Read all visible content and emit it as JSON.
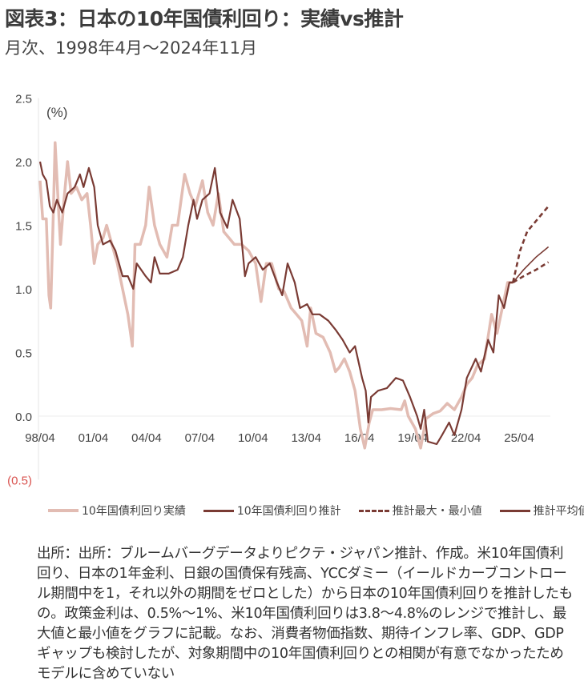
{
  "title": "図表3：日本の10年国債利回り：実績vs推計",
  "subtitle": "月次、1998年4月～2024年11月",
  "footnote": "出所：出所：ブルームバーグデータよりピクテ・ジャパン推計、作成。米10年国債利回り、日本の1年金利、日銀の国債保有残高、YCCダミー（イールドカーブコントロール期間中を1，それ以外の期間をゼロとした）から日本の10年国債利回りを推計したもの。政策金利は、0.5%～1%、米10年国債利回りは3.8～4.8%のレンジで推計し、最大値と最小値をグラフに記載。なお、消費者物価指数、期待インフレ率、GDP、GDPギャップも検討したが、対象期間中の10年国債利回りとの相関が有意でなかったためモデルに含めていない",
  "colors": {
    "actual": "#e2bcb3",
    "estimate": "#7a3b34",
    "negative_label": "#d9534f"
  },
  "chart_data": {
    "type": "line",
    "unit_label": "(%)",
    "ylim": [
      -0.5,
      2.5
    ],
    "xlim": [
      1998.25,
      2027.0
    ],
    "y_ticks": [
      {
        "value": 2.5,
        "label": "2.5"
      },
      {
        "value": 2.0,
        "label": "2.0"
      },
      {
        "value": 1.5,
        "label": "1.5"
      },
      {
        "value": 1.0,
        "label": "1.0"
      },
      {
        "value": 0.5,
        "label": "0.5"
      },
      {
        "value": 0.0,
        "label": "0.0"
      },
      {
        "value": -0.5,
        "label": "(0.5)"
      }
    ],
    "x_ticks": [
      {
        "value": 1998.25,
        "label": "98/04"
      },
      {
        "value": 2001.25,
        "label": "01/04"
      },
      {
        "value": 2004.25,
        "label": "04/04"
      },
      {
        "value": 2007.25,
        "label": "07/04"
      },
      {
        "value": 2010.25,
        "label": "10/04"
      },
      {
        "value": 2013.25,
        "label": "13/04"
      },
      {
        "value": 2016.25,
        "label": "16/04"
      },
      {
        "value": 2019.25,
        "label": "19/04"
      },
      {
        "value": 2022.25,
        "label": "22/04"
      },
      {
        "value": 2025.25,
        "label": "25/04"
      }
    ],
    "grid": false,
    "legend_position": "bottom",
    "series": [
      {
        "name": "10年国債利回り実績",
        "style": "solid-light",
        "points": [
          [
            1998.25,
            1.85
          ],
          [
            1998.4,
            1.55
          ],
          [
            1998.6,
            1.55
          ],
          [
            1998.75,
            0.95
          ],
          [
            1998.85,
            0.85
          ],
          [
            1999.0,
            1.6
          ],
          [
            1999.1,
            2.15
          ],
          [
            1999.3,
            1.6
          ],
          [
            1999.4,
            1.35
          ],
          [
            1999.6,
            1.7
          ],
          [
            1999.8,
            2.0
          ],
          [
            2000.0,
            1.75
          ],
          [
            2000.3,
            1.8
          ],
          [
            2000.6,
            1.7
          ],
          [
            2000.9,
            1.75
          ],
          [
            2001.1,
            1.5
          ],
          [
            2001.3,
            1.2
          ],
          [
            2001.5,
            1.35
          ],
          [
            2001.8,
            1.4
          ],
          [
            2002.0,
            1.5
          ],
          [
            2002.3,
            1.35
          ],
          [
            2002.6,
            1.2
          ],
          [
            2002.9,
            1.0
          ],
          [
            2003.2,
            0.8
          ],
          [
            2003.45,
            0.55
          ],
          [
            2003.6,
            1.35
          ],
          [
            2003.9,
            1.35
          ],
          [
            2004.2,
            1.5
          ],
          [
            2004.4,
            1.8
          ],
          [
            2004.7,
            1.5
          ],
          [
            2005.0,
            1.35
          ],
          [
            2005.4,
            1.25
          ],
          [
            2005.7,
            1.5
          ],
          [
            2006.0,
            1.5
          ],
          [
            2006.4,
            1.9
          ],
          [
            2006.7,
            1.75
          ],
          [
            2007.0,
            1.65
          ],
          [
            2007.4,
            1.85
          ],
          [
            2007.7,
            1.6
          ],
          [
            2008.0,
            1.5
          ],
          [
            2008.3,
            1.75
          ],
          [
            2008.6,
            1.45
          ],
          [
            2008.9,
            1.4
          ],
          [
            2009.2,
            1.35
          ],
          [
            2009.6,
            1.35
          ],
          [
            2010.0,
            1.3
          ],
          [
            2010.4,
            1.2
          ],
          [
            2010.7,
            0.9
          ],
          [
            2011.0,
            1.2
          ],
          [
            2011.3,
            1.2
          ],
          [
            2011.7,
            1.0
          ],
          [
            2012.0,
            0.98
          ],
          [
            2012.4,
            0.85
          ],
          [
            2012.7,
            0.8
          ],
          [
            2013.0,
            0.75
          ],
          [
            2013.3,
            0.55
          ],
          [
            2013.5,
            0.85
          ],
          [
            2013.8,
            0.65
          ],
          [
            2014.2,
            0.62
          ],
          [
            2014.6,
            0.5
          ],
          [
            2014.9,
            0.35
          ],
          [
            2015.1,
            0.38
          ],
          [
            2015.4,
            0.45
          ],
          [
            2015.7,
            0.35
          ],
          [
            2016.0,
            0.2
          ],
          [
            2016.3,
            -0.1
          ],
          [
            2016.55,
            -0.25
          ],
          [
            2016.8,
            -0.05
          ],
          [
            2017.0,
            0.05
          ],
          [
            2017.5,
            0.05
          ],
          [
            2018.0,
            0.06
          ],
          [
            2018.6,
            0.05
          ],
          [
            2018.8,
            0.12
          ],
          [
            2019.0,
            0.0
          ],
          [
            2019.4,
            -0.1
          ],
          [
            2019.7,
            -0.25
          ],
          [
            2020.0,
            -0.02
          ],
          [
            2020.4,
            0.02
          ],
          [
            2020.8,
            0.04
          ],
          [
            2021.2,
            0.1
          ],
          [
            2021.6,
            0.05
          ],
          [
            2022.0,
            0.15
          ],
          [
            2022.3,
            0.25
          ],
          [
            2022.6,
            0.3
          ],
          [
            2022.9,
            0.4
          ],
          [
            2023.3,
            0.45
          ],
          [
            2023.7,
            0.8
          ],
          [
            2024.0,
            0.65
          ],
          [
            2024.3,
            0.85
          ],
          [
            2024.6,
            1.05
          ],
          [
            2024.9,
            1.05
          ]
        ]
      },
      {
        "name": "10年国債利回り推計",
        "style": "solid-dark",
        "points": [
          [
            1998.25,
            2.0
          ],
          [
            1998.4,
            1.9
          ],
          [
            1998.6,
            1.85
          ],
          [
            1998.8,
            1.65
          ],
          [
            1999.0,
            1.6
          ],
          [
            1999.2,
            1.7
          ],
          [
            1999.5,
            1.6
          ],
          [
            1999.8,
            1.75
          ],
          [
            2000.2,
            1.8
          ],
          [
            2000.5,
            1.9
          ],
          [
            2000.7,
            1.8
          ],
          [
            2001.0,
            1.95
          ],
          [
            2001.3,
            1.8
          ],
          [
            2001.5,
            1.5
          ],
          [
            2001.8,
            1.35
          ],
          [
            2002.2,
            1.38
          ],
          [
            2002.5,
            1.3
          ],
          [
            2002.9,
            1.1
          ],
          [
            2003.2,
            1.1
          ],
          [
            2003.5,
            1.0
          ],
          [
            2003.7,
            1.2
          ],
          [
            2004.2,
            1.1
          ],
          [
            2004.5,
            1.05
          ],
          [
            2004.7,
            1.25
          ],
          [
            2005.0,
            1.12
          ],
          [
            2005.5,
            1.12
          ],
          [
            2006.0,
            1.15
          ],
          [
            2006.3,
            1.25
          ],
          [
            2006.6,
            1.5
          ],
          [
            2006.9,
            1.7
          ],
          [
            2007.1,
            1.55
          ],
          [
            2007.4,
            1.7
          ],
          [
            2007.8,
            1.75
          ],
          [
            2008.1,
            1.95
          ],
          [
            2008.4,
            1.6
          ],
          [
            2008.8,
            1.48
          ],
          [
            2009.1,
            1.7
          ],
          [
            2009.5,
            1.55
          ],
          [
            2009.8,
            1.1
          ],
          [
            2010.0,
            1.2
          ],
          [
            2010.4,
            1.25
          ],
          [
            2010.8,
            1.15
          ],
          [
            2011.2,
            1.2
          ],
          [
            2011.6,
            1.05
          ],
          [
            2011.9,
            0.95
          ],
          [
            2012.2,
            1.2
          ],
          [
            2012.6,
            1.05
          ],
          [
            2012.9,
            0.85
          ],
          [
            2013.3,
            0.88
          ],
          [
            2013.6,
            0.8
          ],
          [
            2014.0,
            0.8
          ],
          [
            2014.5,
            0.75
          ],
          [
            2014.9,
            0.68
          ],
          [
            2015.3,
            0.6
          ],
          [
            2015.7,
            0.5
          ],
          [
            2016.0,
            0.55
          ],
          [
            2016.4,
            0.3
          ],
          [
            2016.6,
            0.2
          ],
          [
            2016.75,
            -0.05
          ],
          [
            2016.9,
            0.15
          ],
          [
            2017.3,
            0.2
          ],
          [
            2017.8,
            0.22
          ],
          [
            2018.3,
            0.3
          ],
          [
            2018.7,
            0.28
          ],
          [
            2019.1,
            0.15
          ],
          [
            2019.5,
            0.0
          ],
          [
            2019.7,
            -0.1
          ],
          [
            2019.9,
            0.05
          ],
          [
            2020.1,
            -0.2
          ],
          [
            2020.6,
            -0.22
          ],
          [
            2020.9,
            -0.15
          ],
          [
            2021.3,
            -0.05
          ],
          [
            2021.6,
            -0.15
          ],
          [
            2022.0,
            0.05
          ],
          [
            2022.3,
            0.3
          ],
          [
            2022.8,
            0.45
          ],
          [
            2023.1,
            0.35
          ],
          [
            2023.5,
            0.6
          ],
          [
            2023.8,
            0.5
          ],
          [
            2024.1,
            0.95
          ],
          [
            2024.4,
            0.85
          ],
          [
            2024.7,
            1.05
          ],
          [
            2024.9,
            1.05
          ]
        ]
      },
      {
        "name": "推計最大・最小値",
        "style": "dashed-dark",
        "segments": [
          [
            [
              2024.9,
              1.05
            ],
            [
              2025.3,
              1.3
            ],
            [
              2025.7,
              1.45
            ],
            [
              2026.3,
              1.55
            ],
            [
              2026.9,
              1.65
            ]
          ],
          [
            [
              2024.9,
              1.05
            ],
            [
              2025.5,
              1.1
            ],
            [
              2026.2,
              1.15
            ],
            [
              2026.9,
              1.21
            ]
          ]
        ]
      },
      {
        "name": "推計平均値",
        "style": "thin-dark",
        "points": [
          [
            2024.9,
            1.05
          ],
          [
            2025.5,
            1.15
          ],
          [
            2026.2,
            1.25
          ],
          [
            2026.9,
            1.33
          ]
        ]
      }
    ]
  }
}
